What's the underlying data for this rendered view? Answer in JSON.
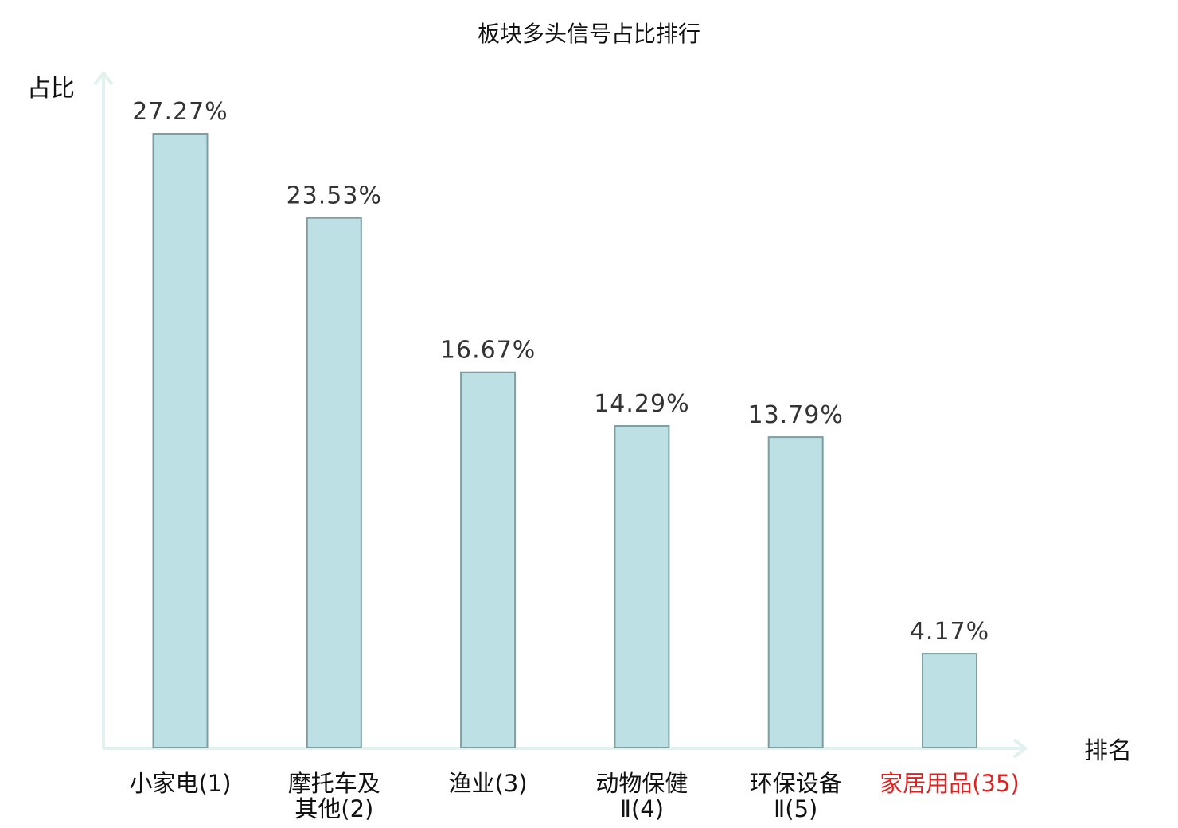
{
  "chart_data": {
    "type": "bar",
    "title": "板块多头信号占比排行",
    "ylabel": "占比",
    "xlabel": "排名",
    "ylim": [
      0,
      30
    ],
    "grid": false,
    "categories": [
      {
        "lines": [
          "小家电(1)"
        ],
        "highlight": false
      },
      {
        "lines": [
          "摩托车及",
          "其他(2)"
        ],
        "highlight": false
      },
      {
        "lines": [
          "渔业(3)"
        ],
        "highlight": false
      },
      {
        "lines": [
          "动物保健",
          "Ⅱ(4)"
        ],
        "highlight": false
      },
      {
        "lines": [
          "环保设备",
          "Ⅱ(5)"
        ],
        "highlight": false
      },
      {
        "lines": [
          "家居用品(35)"
        ],
        "highlight": true
      }
    ],
    "values": [
      27.27,
      23.53,
      16.67,
      14.29,
      13.79,
      4.17
    ],
    "value_labels": [
      "27.27%",
      "23.53%",
      "16.67%",
      "14.29%",
      "13.79%",
      "4.17%"
    ],
    "colors": {
      "bar_fill": "#bce0e3",
      "bar_stroke": "#7e9fa2",
      "axis": "#e0f1ef",
      "highlight_text": "#dd2222"
    }
  }
}
